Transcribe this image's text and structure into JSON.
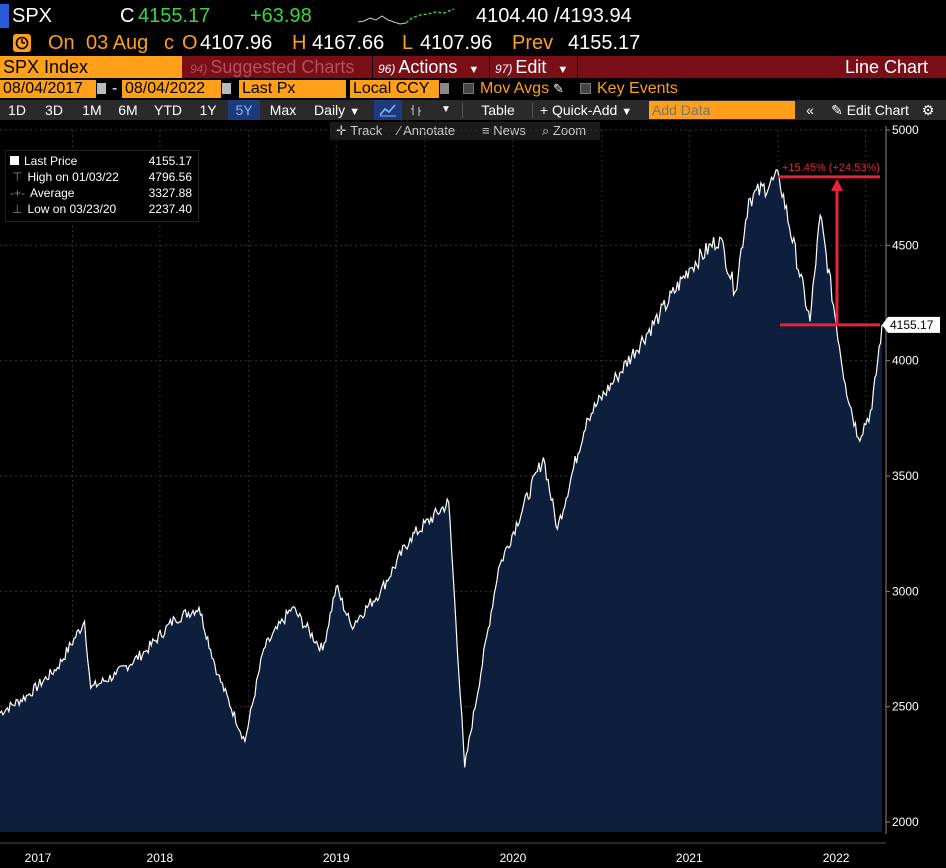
{
  "quote": {
    "ticker": "SPX",
    "c_label": "C",
    "last": "4155.17",
    "change": "+63.98",
    "bid_ask": "4104.40 /4193.94",
    "alert_icon": "alert-clock-icon",
    "on_label": "On",
    "date": "03 Aug",
    "c2_label": "c",
    "o_label": "O",
    "open": "4107.96",
    "h_label": "H",
    "high": "4167.66",
    "l_label": "L",
    "low": "4107.96",
    "prev_label": "Prev",
    "prev": "4155.17"
  },
  "menubar": {
    "security": "SPX Index",
    "suggested_num": "94)",
    "suggested": "Suggested Charts",
    "actions_num": "96)",
    "actions": "Actions",
    "edit_num": "97)",
    "edit": "Edit",
    "chart_type": "Line Chart"
  },
  "params": {
    "start_date": "08/04/2017",
    "dash": "-",
    "end_date": "08/04/2022",
    "field": "Last Px",
    "currency": "Local CCY",
    "mov_avgs": "Mov Avgs",
    "key_events": "Key Events"
  },
  "toolbar": {
    "ranges": [
      "1D",
      "3D",
      "1M",
      "6M",
      "YTD",
      "1Y",
      "5Y",
      "Max"
    ],
    "active_range": "5Y",
    "frequency": "Daily",
    "table": "Table",
    "quick_add": "Quick-Add",
    "add_data_placeholder": "Add Data",
    "edit_chart": "Edit Chart"
  },
  "tools": {
    "track": "Track",
    "annotate": "Annotate",
    "news": "News",
    "zoom": "Zoom"
  },
  "legend": {
    "last_price_label": "Last Price",
    "last_price_value": "4155.17",
    "high_label": "High on 01/03/22",
    "high_value": "4796.56",
    "average_label": "Average",
    "average_value": "3327.88",
    "low_label": "Low on 03/23/20",
    "low_value": "2237.40"
  },
  "annotation": {
    "pct_text": "+15.45% (+24.53%)"
  },
  "colors": {
    "accent_orange": "#ff9f1a",
    "menu_red": "#7a0f18",
    "chart_fill": "#0d1f3c",
    "measure_red": "#e8213c",
    "positive_green": "#3ad63a"
  },
  "chart_data": {
    "type": "area",
    "x_ticks": [
      "2017",
      "2018",
      "2019",
      "2020",
      "2021",
      "2022"
    ],
    "y_ticks": [
      2000,
      2500,
      3000,
      3500,
      4000,
      4500,
      5000
    ],
    "ylim": [
      2000,
      5000
    ],
    "last_value_label": "4155.17",
    "series": [
      {
        "values": [
          [
            "2017-08",
            2470
          ],
          [
            "2017-10",
            2550
          ],
          [
            "2017-12",
            2670
          ],
          [
            "2018-01-26",
            2870
          ],
          [
            "2018-02-08",
            2580
          ],
          [
            "2018-04",
            2640
          ],
          [
            "2018-06",
            2740
          ],
          [
            "2018-08",
            2880
          ],
          [
            "2018-09-20",
            2930
          ],
          [
            "2018-10-29",
            2640
          ],
          [
            "2018-12-24",
            2350
          ],
          [
            "2019-02",
            2750
          ],
          [
            "2019-04",
            2930
          ],
          [
            "2019-06-03",
            2745
          ],
          [
            "2019-07",
            3020
          ],
          [
            "2019-08",
            2850
          ],
          [
            "2019-10",
            3000
          ],
          [
            "2019-12",
            3230
          ],
          [
            "2020-02-19",
            3386
          ],
          [
            "2020-03-23",
            2237
          ],
          [
            "2020-06",
            3100
          ],
          [
            "2020-09-02",
            3580
          ],
          [
            "2020-10",
            3270
          ],
          [
            "2020-12",
            3750
          ],
          [
            "2021-02",
            3930
          ],
          [
            "2021-05",
            4200
          ],
          [
            "2021-07",
            4400
          ],
          [
            "2021-09-02",
            4535
          ],
          [
            "2021-10-04",
            4300
          ],
          [
            "2021-11",
            4700
          ],
          [
            "2022-01-03",
            4796.56
          ],
          [
            "2022-03-08",
            4170
          ],
          [
            "2022-03-29",
            4630
          ],
          [
            "2022-05-20",
            3900
          ],
          [
            "2022-06-16",
            3666
          ],
          [
            "2022-07-14",
            3790
          ],
          [
            "2022-08-04",
            4155.17
          ]
        ]
      }
    ]
  }
}
